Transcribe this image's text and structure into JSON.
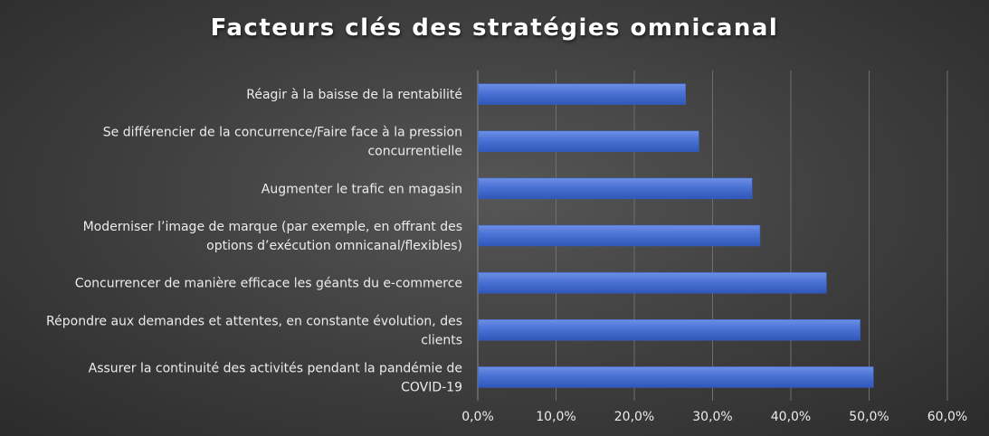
{
  "chart_data": {
    "type": "bar",
    "orientation": "horizontal",
    "title": "Facteurs clés des stratégies omnicanal",
    "xlabel": "",
    "ylabel": "",
    "xlim": [
      0,
      60
    ],
    "x_ticks": [
      0,
      10,
      20,
      30,
      40,
      50,
      60
    ],
    "x_tick_labels": [
      "0,0%",
      "10,0%",
      "20,0%",
      "30,0%",
      "40,0%",
      "50,0%",
      "60,0%"
    ],
    "grid": true,
    "legend": "none",
    "bar_color": "#4a72d4",
    "categories": [
      [
        "Réagir à la baisse de la rentabilité"
      ],
      [
        "Se différencier de la concurrence/Faire face à la pression",
        "concurrentielle"
      ],
      [
        "Augmenter le trafic en magasin"
      ],
      [
        "Moderniser l’image de marque (par exemple,  en offrant des",
        "options d’exécution omnicanal/flexibles)"
      ],
      [
        "Concurrencer de manière efficace les géants du e-commerce"
      ],
      [
        "Répondre aux demandes et attentes, en constante évolution, des",
        "clients"
      ],
      [
        "Assurer la continuité des activités pendant la pandémie de",
        "COVID-19"
      ]
    ],
    "values": [
      26.5,
      28.2,
      35.0,
      36.0,
      44.5,
      48.8,
      50.5
    ]
  }
}
